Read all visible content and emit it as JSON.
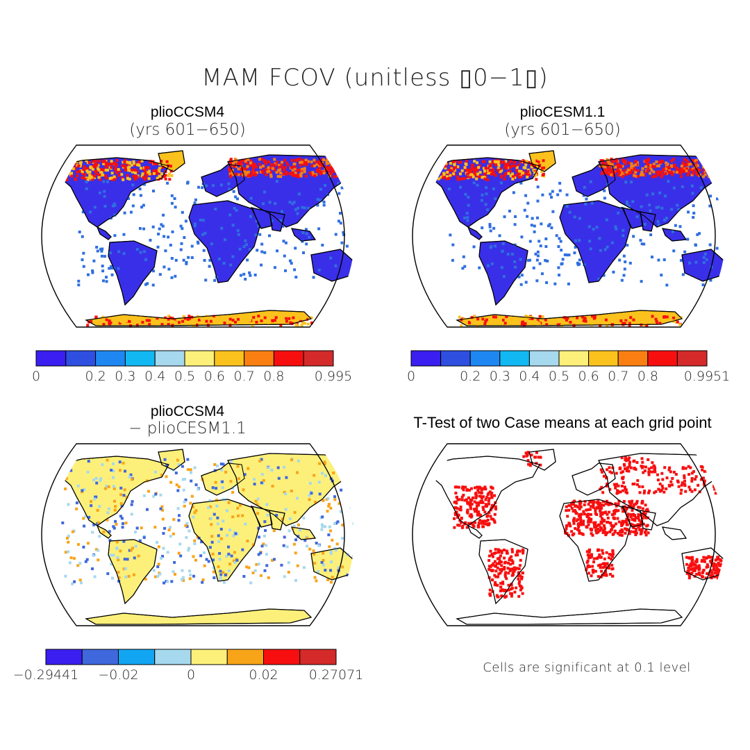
{
  "title": "MAM FCOV (unitless ▯0−1▯)",
  "panels": [
    {
      "name": "plioCCSM4",
      "subtitle": "(yrs 601−650)"
    },
    {
      "name": "plioCESM1.1",
      "subtitle": "(yrs 601−650)"
    },
    {
      "name": "plioCCSM4",
      "subtitle": "− plioCESM1.1"
    },
    {
      "name": "T-Test of two Case means at each grid point"
    }
  ],
  "colorbars": [
    {
      "colors": [
        "#3a1ff0",
        "#2e4fe0",
        "#1f87f2",
        "#12b8f2",
        "#a6d8ee",
        "#fdf07a",
        "#fbc21d",
        "#fa7f12",
        "#f70f0f",
        "#d42a2a"
      ],
      "labels": [
        "0",
        "0.2",
        "0.3",
        "0.4",
        "0.5",
        "0.6",
        "0.7",
        "0.8",
        "0.995"
      ],
      "label_slots": [
        0,
        2,
        3,
        4,
        5,
        6,
        7,
        8,
        10
      ]
    },
    {
      "colors": [
        "#3a1ff0",
        "#2e4fe0",
        "#1f87f2",
        "#12b8f2",
        "#a6d8ee",
        "#fdf07a",
        "#fbc21d",
        "#fa7f12",
        "#f70f0f",
        "#d42a2a"
      ],
      "labels": [
        "0",
        "0.2",
        "0.3",
        "0.4",
        "0.5",
        "0.6",
        "0.7",
        "0.8",
        "0.9951"
      ],
      "label_slots": [
        0,
        2,
        3,
        4,
        5,
        6,
        7,
        8,
        10
      ]
    },
    {
      "colors": [
        "#3a1ff0",
        "#3f68dc",
        "#12a6f2",
        "#a6d8ee",
        "#fdf07a",
        "#f8a418",
        "#f70f0f",
        "#d42a2a"
      ],
      "labels": [
        "−0.29441",
        "−0.02",
        "0",
        "0.02",
        "0.27071"
      ],
      "label_slots": [
        0,
        2,
        4,
        6,
        8
      ]
    }
  ],
  "significance_note": "Cells are significant at 0.1 level",
  "map_colors": {
    "ocean": "#ffffff",
    "land_low": "#3a2fe8",
    "land_mid": "#2f6fe0",
    "boreal": "#f70f0f",
    "tundra": "#fbc21d",
    "diff_base": "#fdf07a",
    "diff_pos": "#f8a418",
    "diff_neg": "#a6d8ee",
    "ttest": "#f70f0f"
  }
}
